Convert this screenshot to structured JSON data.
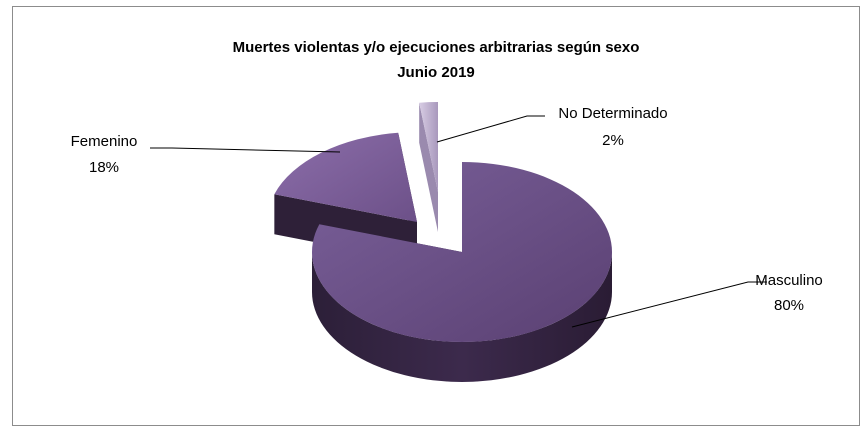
{
  "chart_data": {
    "type": "pie",
    "title": "Muertes violentas y/o ejecuciones arbitrarias según sexo",
    "subtitle": "Junio 2019",
    "slices": [
      {
        "label": "Masculino",
        "percent_label": "80%",
        "value": 80,
        "color": "#6a4f82"
      },
      {
        "label": "Femenino",
        "percent_label": "18%",
        "value": 18,
        "color": "#7e609a"
      },
      {
        "label": "No Determinado",
        "percent_label": "2%",
        "value": 2,
        "color": "#c4b6d4"
      }
    ],
    "style": "3d-exploded"
  }
}
